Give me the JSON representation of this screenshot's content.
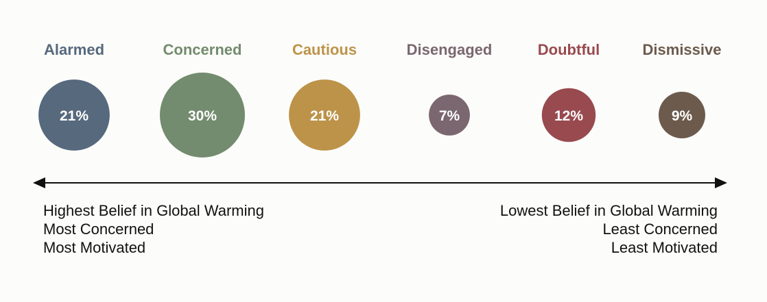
{
  "chart_data": {
    "type": "bubble",
    "categories": [
      "Alarmed",
      "Concerned",
      "Cautious",
      "Disengaged",
      "Doubtful",
      "Dismissive"
    ],
    "values": [
      21,
      30,
      21,
      7,
      12,
      9
    ],
    "value_labels": [
      "21%",
      "30%",
      "21%",
      "7%",
      "12%",
      "9%"
    ],
    "colors": [
      "#56697d",
      "#738b6e",
      "#bd9349",
      "#7a6770",
      "#984a4f",
      "#6c5b4d"
    ],
    "axis": {
      "left_lines": [
        "Highest Belief in Global Warming",
        "Most Concerned",
        "Most Motivated"
      ],
      "right_lines": [
        "Lowest Belief in Global Warming",
        "Least Concerned",
        "Least Motivated"
      ]
    }
  }
}
